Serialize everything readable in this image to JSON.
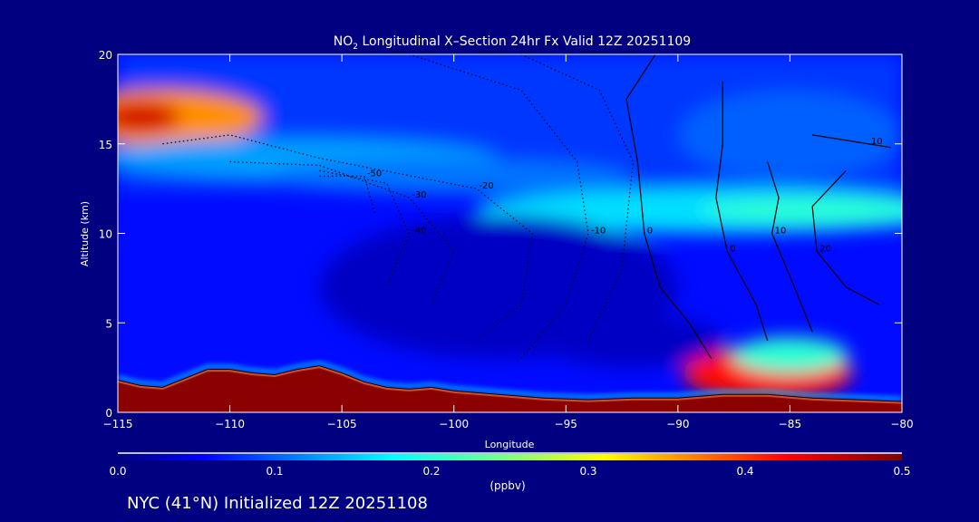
{
  "chart_data": {
    "type": "heatmap",
    "title_main": "NO",
    "title_sub": "2",
    "title_rest": " Longitudinal X–Section 24hr  Fx Valid 12Z 20251109",
    "xlabel": "Longitude",
    "ylabel": "Altitude (km)",
    "xlim": [
      -115,
      -80
    ],
    "ylim": [
      0,
      20
    ],
    "xticks": [
      -115,
      -110,
      -105,
      -100,
      -95,
      -90,
      -85,
      -80
    ],
    "xtick_labels": [
      "−115",
      "−110",
      "−105",
      "−100",
      "−95",
      "−90",
      "−85",
      "−80"
    ],
    "yticks": [
      0,
      5,
      10,
      15,
      20
    ],
    "ytick_labels": [
      "0",
      "5",
      "10",
      "15",
      "20"
    ],
    "colorbar": {
      "range": [
        0.0,
        0.5
      ],
      "ticks": [
        0.0,
        0.1,
        0.2,
        0.3,
        0.4,
        0.5
      ],
      "tick_labels": [
        "0.0",
        "0.1",
        "0.2",
        "0.3",
        "0.4",
        "0.5"
      ],
      "label": "(ppbv)"
    },
    "background_value": 0.06,
    "field_features": [
      {
        "lon": -113,
        "alt": 16.5,
        "rlon": 4.5,
        "ralt": 1.6,
        "value": 0.36
      },
      {
        "lon": -114,
        "alt": 16.5,
        "rlon": 1.8,
        "ralt": 0.9,
        "value": 0.45
      },
      {
        "lon": -107,
        "alt": 14.2,
        "rlon": 9,
        "ralt": 1.2,
        "value": 0.13
      },
      {
        "lon": -100,
        "alt": 13.2,
        "rlon": 8,
        "ralt": 1.0,
        "value": 0.11
      },
      {
        "lon": -88,
        "alt": 11.3,
        "rlon": 11,
        "ralt": 1.3,
        "value": 0.16
      },
      {
        "lon": -84,
        "alt": 11.3,
        "rlon": 5,
        "ralt": 0.7,
        "value": 0.2
      },
      {
        "lon": -85,
        "alt": 15.5,
        "rlon": 5,
        "ralt": 2.5,
        "value": 0.1
      },
      {
        "lon": -86,
        "alt": 2.2,
        "rlon": 3.8,
        "ralt": 1.5,
        "value": 0.42
      },
      {
        "lon": -85,
        "alt": 3.2,
        "rlon": 2.6,
        "ralt": 1.0,
        "value": 0.2
      },
      {
        "lon": -98,
        "alt": 7,
        "rlon": 8,
        "ralt": 4,
        "value": 0.03
      },
      {
        "lon": -92,
        "alt": 4,
        "rlon": 4,
        "ralt": 1.5,
        "value": 0.03
      }
    ],
    "terrain": [
      [
        -115,
        1.8
      ],
      [
        -114,
        1.5
      ],
      [
        -113,
        1.4
      ],
      [
        -112,
        1.9
      ],
      [
        -111,
        2.4
      ],
      [
        -110,
        2.4
      ],
      [
        -109,
        2.2
      ],
      [
        -108,
        2.1
      ],
      [
        -107,
        2.4
      ],
      [
        -106,
        2.6
      ],
      [
        -105,
        2.2
      ],
      [
        -104,
        1.7
      ],
      [
        -103,
        1.4
      ],
      [
        -102,
        1.3
      ],
      [
        -101,
        1.4
      ],
      [
        -100,
        1.2
      ],
      [
        -98,
        1.0
      ],
      [
        -96,
        0.8
      ],
      [
        -94,
        0.7
      ],
      [
        -92,
        0.8
      ],
      [
        -90,
        0.8
      ],
      [
        -89,
        0.9
      ],
      [
        -88,
        1.0
      ],
      [
        -86,
        1.0
      ],
      [
        -84,
        0.8
      ],
      [
        -82,
        0.7
      ],
      [
        -80,
        0.6
      ]
    ],
    "contours": [
      {
        "style": "solid",
        "label": "0",
        "points": [
          [
            -91,
            20
          ],
          [
            -92.3,
            17.5
          ],
          [
            -91.8,
            14
          ],
          [
            -91.5,
            10
          ],
          [
            -90.8,
            7
          ],
          [
            -89.5,
            5
          ],
          [
            -88.5,
            3
          ]
        ]
      },
      {
        "style": "solid",
        "label": "0",
        "points": [
          [
            -88,
            18.5
          ],
          [
            -88,
            15
          ],
          [
            -88.3,
            12
          ],
          [
            -87.8,
            9
          ],
          [
            -86.5,
            6
          ],
          [
            -86,
            4
          ]
        ]
      },
      {
        "style": "solid",
        "label": "10",
        "points": [
          [
            -86,
            14
          ],
          [
            -85.5,
            12
          ],
          [
            -85.8,
            10
          ],
          [
            -84.8,
            7
          ],
          [
            -84,
            4.5
          ]
        ]
      },
      {
        "style": "solid",
        "label": "20",
        "points": [
          [
            -82.5,
            13.5
          ],
          [
            -84,
            11.5
          ],
          [
            -83.8,
            9
          ],
          [
            -82.5,
            7
          ],
          [
            -81,
            6
          ]
        ]
      },
      {
        "style": "solid",
        "label": "10",
        "points": [
          [
            -84,
            15.5
          ],
          [
            -81.5,
            15
          ],
          [
            -80.5,
            14.8
          ]
        ]
      },
      {
        "style": "dotted",
        "label": "-10",
        "points": [
          [
            -102,
            20
          ],
          [
            -97,
            18
          ],
          [
            -94.5,
            14
          ],
          [
            -94,
            10
          ],
          [
            -95,
            6
          ],
          [
            -97,
            3
          ]
        ]
      },
      {
        "style": "dotted",
        "label": "-20",
        "points": [
          [
            -113,
            15
          ],
          [
            -110,
            15.5
          ],
          [
            -106,
            14.2
          ],
          [
            -99,
            12.5
          ],
          [
            -96.5,
            10
          ],
          [
            -97,
            6
          ],
          [
            -99,
            4
          ]
        ]
      },
      {
        "style": "dotted",
        "label": "-30",
        "points": [
          [
            -110,
            14
          ],
          [
            -106,
            13.8
          ],
          [
            -102,
            12
          ],
          [
            -100,
            9
          ],
          [
            -101,
            6
          ]
        ]
      },
      {
        "style": "dotted",
        "label": "-40",
        "points": [
          [
            -106,
            13.5
          ],
          [
            -103,
            12.8
          ],
          [
            -102,
            10
          ],
          [
            -103,
            7
          ]
        ]
      },
      {
        "style": "dotted",
        "label": "-50",
        "points": [
          [
            -106,
            13.2
          ],
          [
            -104,
            13.2
          ],
          [
            -103.5,
            11
          ]
        ]
      },
      {
        "style": "dotted",
        "label": "",
        "points": [
          [
            -97,
            20
          ],
          [
            -93.5,
            18
          ],
          [
            -92,
            14
          ],
          [
            -92.5,
            8
          ],
          [
            -94,
            4
          ]
        ]
      }
    ]
  },
  "footer": "NYC (41°N) Initialized 12Z 20251108"
}
